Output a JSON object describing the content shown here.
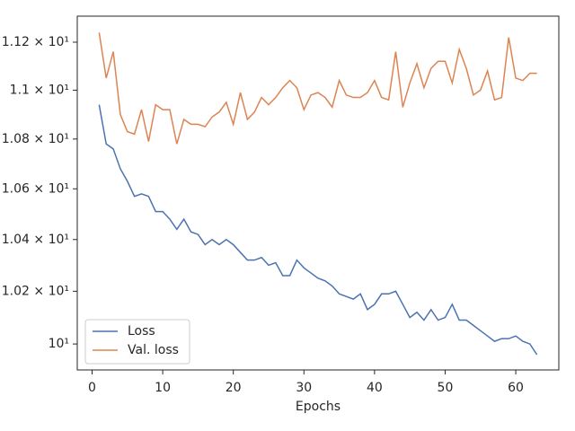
{
  "chart_data": {
    "type": "line",
    "xlabel": "Epochs",
    "yscale": "log",
    "legend": "lower left",
    "x": [
      1,
      2,
      3,
      4,
      5,
      6,
      7,
      8,
      9,
      10,
      11,
      12,
      13,
      14,
      15,
      16,
      17,
      18,
      19,
      20,
      21,
      22,
      23,
      24,
      25,
      26,
      27,
      28,
      29,
      30,
      31,
      32,
      33,
      34,
      35,
      36,
      37,
      38,
      39,
      40,
      41,
      42,
      43,
      44,
      45,
      46,
      47,
      48,
      49,
      50,
      51,
      52,
      53,
      54,
      55,
      56,
      57,
      58,
      59,
      60,
      61,
      62,
      63
    ],
    "series": [
      {
        "name": "Loss",
        "color": "#4c72b0",
        "values": [
          10.94,
          10.78,
          10.76,
          10.68,
          10.63,
          10.57,
          10.58,
          10.57,
          10.51,
          10.51,
          10.48,
          10.44,
          10.48,
          10.43,
          10.42,
          10.38,
          10.4,
          10.38,
          10.4,
          10.38,
          10.35,
          10.32,
          10.32,
          10.33,
          10.3,
          10.31,
          10.26,
          10.26,
          10.32,
          10.29,
          10.27,
          10.25,
          10.24,
          10.22,
          10.19,
          10.18,
          10.17,
          10.19,
          10.13,
          10.15,
          10.19,
          10.19,
          10.2,
          10.15,
          10.1,
          10.12,
          10.09,
          10.13,
          10.09,
          10.1,
          10.15,
          10.09,
          10.09,
          10.07,
          10.05,
          10.03,
          10.01,
          10.02,
          10.02,
          10.03,
          10.01,
          10.0,
          9.96
        ]
      },
      {
        "name": "Val. loss",
        "color": "#dd8452",
        "values": [
          11.24,
          11.05,
          11.16,
          10.9,
          10.83,
          10.82,
          10.92,
          10.79,
          10.94,
          10.92,
          10.92,
          10.78,
          10.88,
          10.86,
          10.86,
          10.85,
          10.89,
          10.91,
          10.95,
          10.86,
          10.99,
          10.88,
          10.91,
          10.97,
          10.94,
          10.97,
          11.01,
          11.04,
          11.01,
          10.92,
          10.98,
          10.99,
          10.97,
          10.93,
          11.04,
          10.98,
          10.97,
          10.97,
          10.99,
          11.04,
          10.97,
          10.96,
          11.16,
          10.93,
          11.03,
          11.11,
          11.01,
          11.09,
          11.12,
          11.12,
          11.03,
          11.17,
          11.09,
          10.98,
          11.0,
          11.08,
          10.96,
          10.97,
          11.22,
          11.05,
          11.04,
          11.07,
          11.07
        ]
      }
    ],
    "xlim": [
      -2.1,
      66.1
    ],
    "xticks": [
      0,
      10,
      20,
      30,
      40,
      50,
      60
    ],
    "ylim": [
      9.903,
      11.31
    ],
    "yticks": [
      {
        "value": 10,
        "label": "10¹"
      },
      {
        "value": 10.2,
        "label": "1.02 × 10¹"
      },
      {
        "value": 10.4,
        "label": "1.04 × 10¹"
      },
      {
        "value": 10.6,
        "label": "1.06 × 10¹"
      },
      {
        "value": 10.8,
        "label": "1.08 × 10¹"
      },
      {
        "value": 11,
        "label": "1.1 × 10¹"
      },
      {
        "value": 11.2,
        "label": "1.12 × 10¹"
      }
    ]
  }
}
